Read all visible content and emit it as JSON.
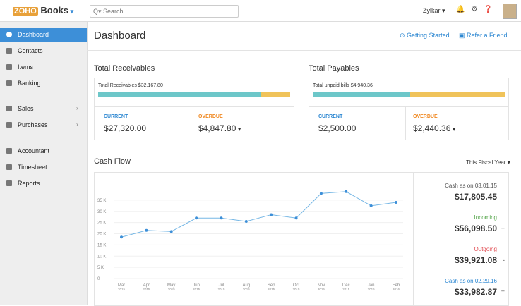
{
  "header": {
    "logo": "ZOHO",
    "product": "Books",
    "search": "Search",
    "user": "Zylkar"
  },
  "sidebar": {
    "items": [
      "Dashboard",
      "Contacts",
      "Items",
      "Banking",
      "Sales",
      "Purchases",
      "Accountant",
      "Timesheet",
      "Reports"
    ],
    "active": 0
  },
  "page": {
    "title": "Dashboard",
    "links": [
      "Getting Started",
      "Refer a Friend"
    ]
  },
  "cards": [
    {
      "title": "Total Receivables",
      "bar_label": "Total Receivables $32,167.80",
      "current_label": "CURRENT",
      "current": "$27,320.00",
      "overdue_label": "OVERDUE",
      "overdue": "$4,847.80"
    },
    {
      "title": "Total Payables",
      "bar_label": "Total unpaid bills $4,940.36",
      "current_label": "CURRENT",
      "current": "$2,500.00",
      "overdue_label": "OVERDUE",
      "overdue": "$2,440.36"
    }
  ],
  "cash_flow": {
    "title": "Cash Flow",
    "period": "This Fiscal Year",
    "summary": [
      {
        "label": "Cash as on 03.01.15",
        "value": "$17,805.45",
        "sign": null,
        "color": "#555555"
      },
      {
        "label": "Incoming",
        "value": "$56,098.50",
        "sign": "+",
        "color": "#52a447"
      },
      {
        "label": "Outgoing",
        "value": "$39,921.08",
        "sign": "-",
        "color": "#e0484e"
      },
      {
        "label": "Cash as on 02.29.16",
        "value": "$33,982.87",
        "sign": "=",
        "color": "#2a86d1"
      }
    ]
  },
  "chart_data": {
    "type": "line",
    "color": "#76b7e5",
    "grid": true,
    "categories": [
      {
        "month": "Mar",
        "year": "2015"
      },
      {
        "month": "Apr",
        "year": "2015"
      },
      {
        "month": "May",
        "year": "2015"
      },
      {
        "month": "Jun",
        "year": "2015"
      },
      {
        "month": "Jul",
        "year": "2015"
      },
      {
        "month": "Aug",
        "year": "2015"
      },
      {
        "month": "Sep",
        "year": "2015"
      },
      {
        "month": "Oct",
        "year": "2015"
      },
      {
        "month": "Nov",
        "year": "2015"
      },
      {
        "month": "Dec",
        "year": "2015"
      },
      {
        "month": "Jan",
        "year": "2016"
      },
      {
        "month": "Feb",
        "year": "2016"
      }
    ],
    "values": [
      18500,
      21500,
      21000,
      27000,
      27000,
      25500,
      28500,
      27000,
      38000,
      38800,
      32500,
      34000
    ],
    "ylim": [
      0,
      40000
    ],
    "yticks": [
      0,
      {
        "value": 5000,
        "label": "5 K"
      },
      {
        "value": 10000,
        "label": "10 K"
      },
      {
        "value": 15000,
        "label": "15 K"
      },
      {
        "value": 20000,
        "label": "20 K"
      },
      {
        "value": 25000,
        "label": "25 K"
      },
      {
        "value": 30000,
        "label": "30 K"
      },
      {
        "value": 35000,
        "label": "35 K"
      }
    ]
  }
}
